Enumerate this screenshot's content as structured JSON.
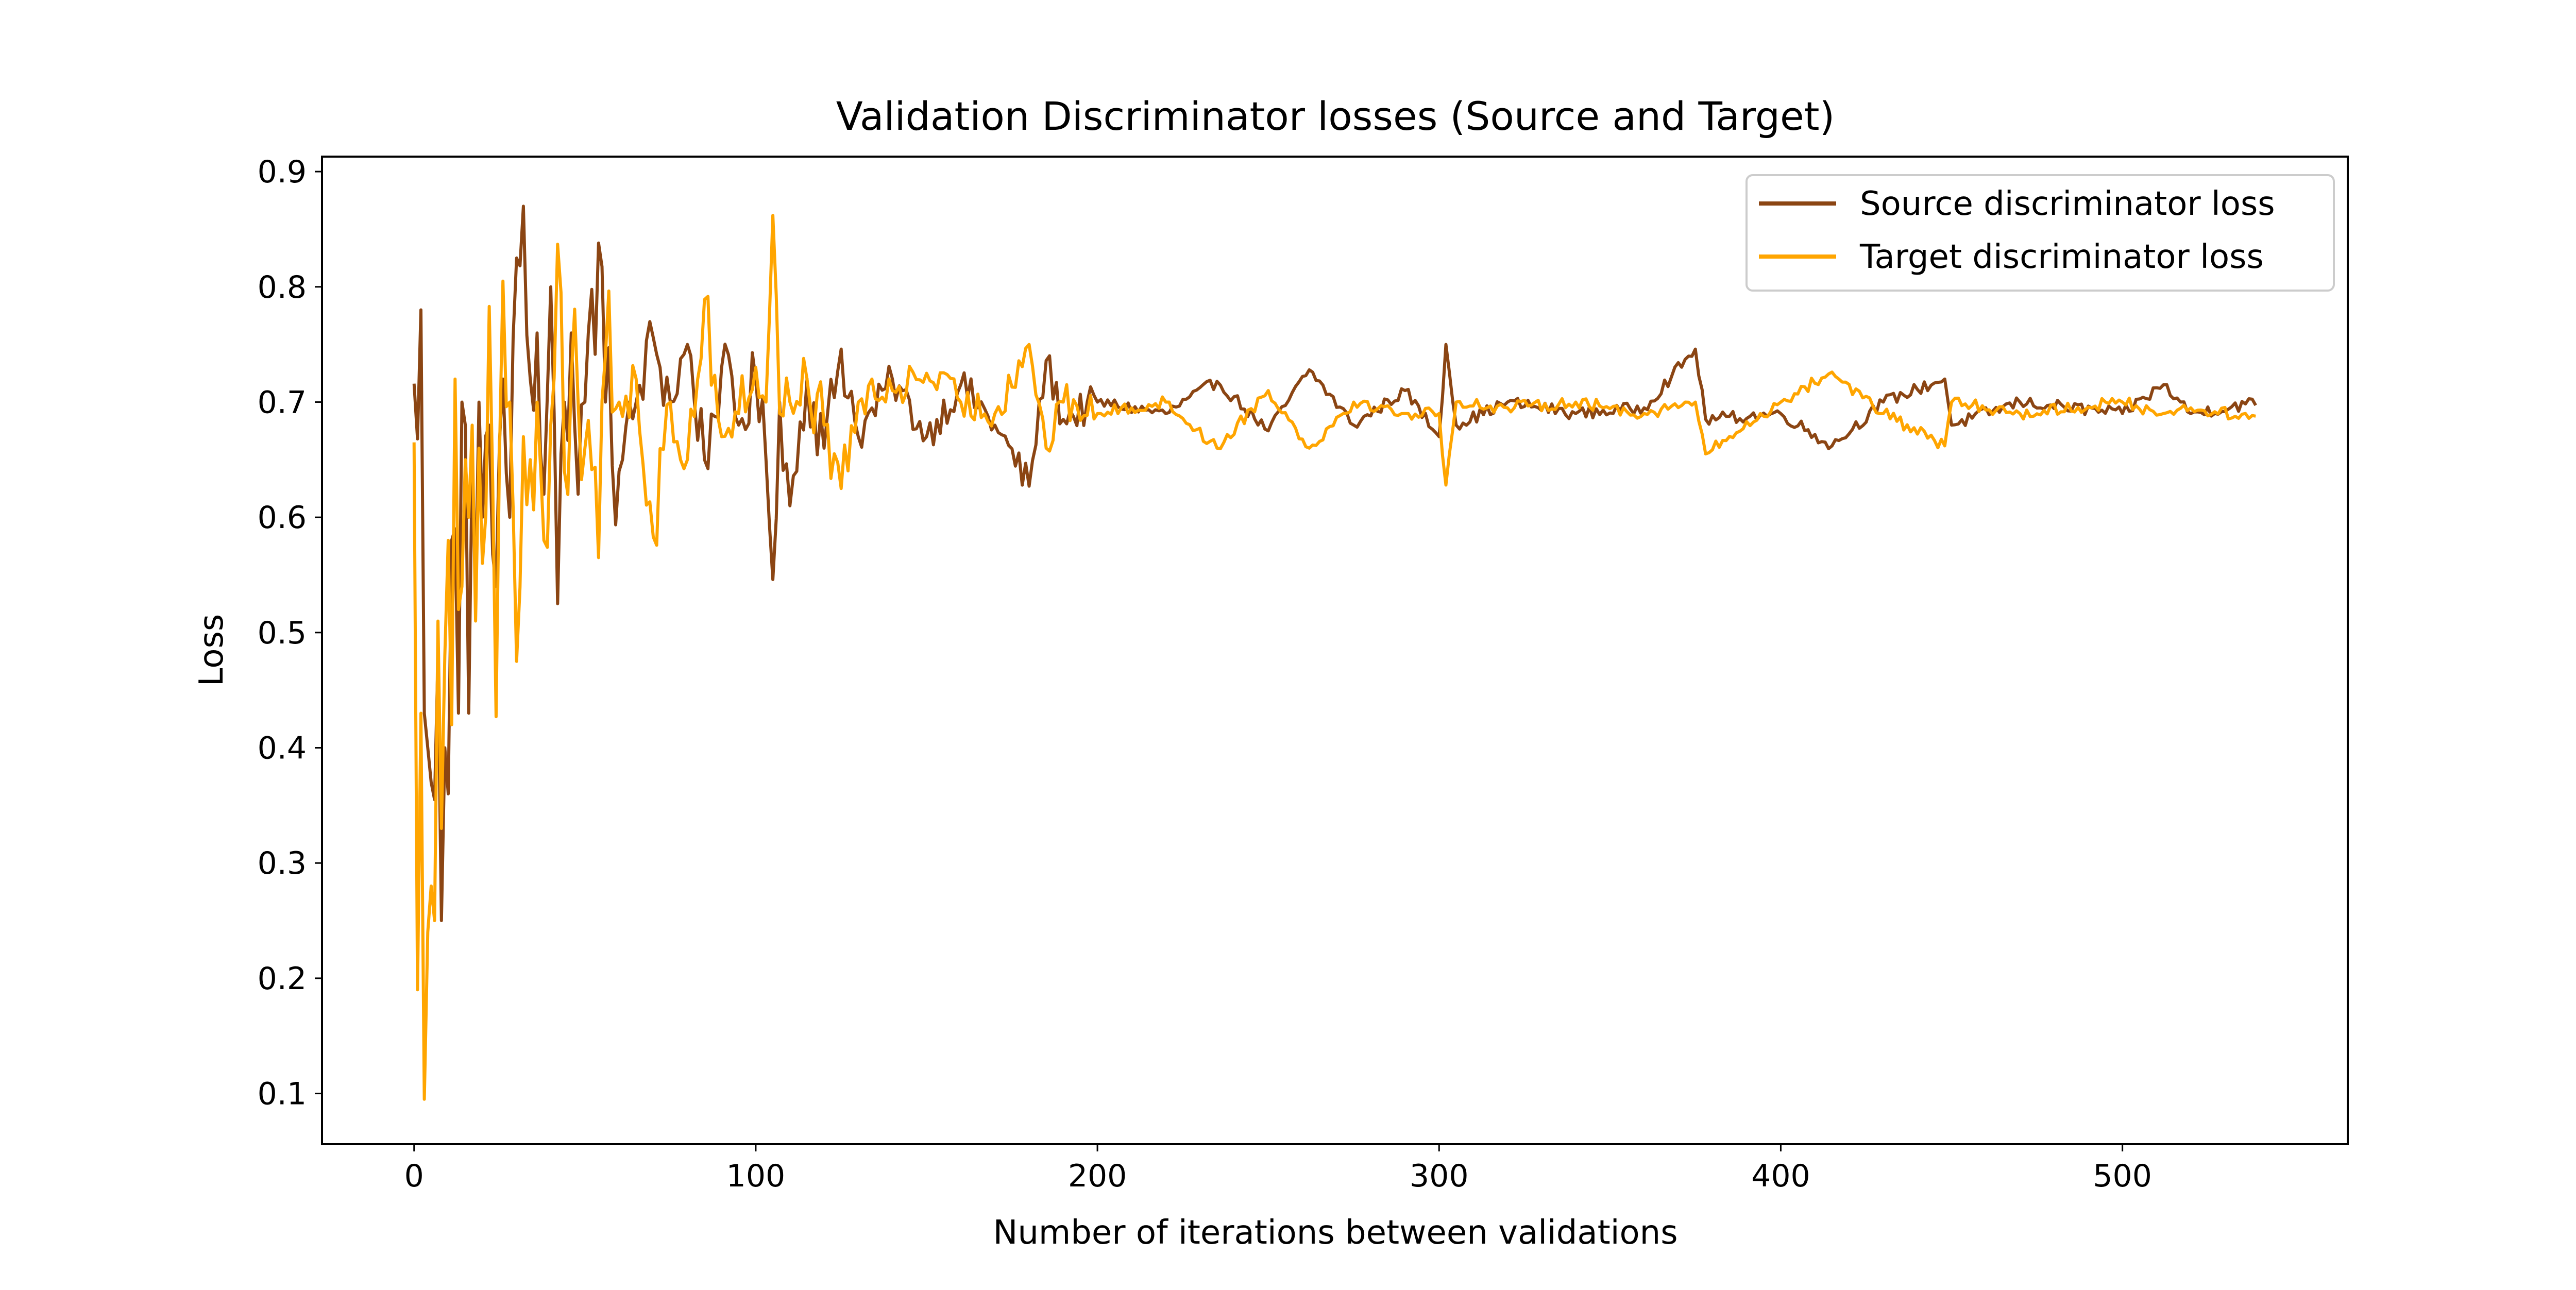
{
  "chart_data": {
    "type": "line",
    "title": "Validation Discriminator losses (Source and Target)",
    "xlabel": "Number of iterations between validations",
    "ylabel": "Loss",
    "xlim": [
      -26.95,
      565.95
    ],
    "ylim": [
      0.056,
      0.913
    ],
    "xticks": [
      0,
      100,
      200,
      300,
      400,
      500
    ],
    "yticks": [
      0.1,
      0.2,
      0.3,
      0.4,
      0.5,
      0.6,
      0.7,
      0.8,
      0.9
    ],
    "xtick_labels": [
      "0",
      "100",
      "200",
      "300",
      "400",
      "500"
    ],
    "ytick_labels": [
      "0.1",
      "0.2",
      "0.3",
      "0.4",
      "0.5",
      "0.6",
      "0.7",
      "0.8",
      "0.9"
    ],
    "grid": false,
    "legend_position": "top-right",
    "n_points": 540,
    "series": [
      {
        "name": "Source discriminator loss",
        "color": "#8B4513",
        "anchors": [
          [
            0,
            0.716
          ],
          [
            1,
            0.668
          ],
          [
            2,
            0.78
          ],
          [
            3,
            0.43
          ],
          [
            4,
            0.4
          ],
          [
            5,
            0.37
          ],
          [
            6,
            0.355
          ],
          [
            7,
            0.48
          ],
          [
            8,
            0.25
          ],
          [
            9,
            0.4
          ],
          [
            10,
            0.36
          ],
          [
            11,
            0.58
          ],
          [
            12,
            0.59
          ],
          [
            13,
            0.43
          ],
          [
            14,
            0.7
          ],
          [
            15,
            0.68
          ],
          [
            16,
            0.43
          ],
          [
            17,
            0.65
          ],
          [
            18,
            0.54
          ],
          [
            19,
            0.7
          ],
          [
            20,
            0.6
          ],
          [
            22,
            0.68
          ],
          [
            24,
            0.54
          ],
          [
            26,
            0.72
          ],
          [
            28,
            0.6
          ],
          [
            30,
            0.825
          ],
          [
            32,
            0.87
          ],
          [
            34,
            0.72
          ],
          [
            36,
            0.76
          ],
          [
            38,
            0.62
          ],
          [
            40,
            0.8
          ],
          [
            42,
            0.525
          ],
          [
            44,
            0.7
          ],
          [
            46,
            0.76
          ],
          [
            48,
            0.62
          ],
          [
            50,
            0.7
          ],
          [
            54,
            0.838
          ],
          [
            56,
            0.7
          ],
          [
            60,
            0.64
          ],
          [
            65,
            0.7
          ],
          [
            70,
            0.756
          ],
          [
            75,
            0.7
          ],
          [
            80,
            0.75
          ],
          [
            85,
            0.65
          ],
          [
            90,
            0.73
          ],
          [
            95,
            0.68
          ],
          [
            100,
            0.72
          ],
          [
            103,
            0.65
          ],
          [
            105,
            0.546
          ],
          [
            107,
            0.7
          ],
          [
            110,
            0.61
          ],
          [
            115,
            0.72
          ],
          [
            120,
            0.66
          ],
          [
            125,
            0.746
          ],
          [
            130,
            0.67
          ],
          [
            140,
            0.72
          ],
          [
            150,
            0.67
          ],
          [
            160,
            0.715
          ],
          [
            170,
            0.68
          ],
          [
            180,
            0.627
          ],
          [
            185,
            0.736
          ],
          [
            190,
            0.685
          ],
          [
            200,
            0.7
          ],
          [
            220,
            0.69
          ],
          [
            235,
            0.718
          ],
          [
            250,
            0.675
          ],
          [
            262,
            0.728
          ],
          [
            275,
            0.68
          ],
          [
            290,
            0.71
          ],
          [
            300,
            0.67
          ],
          [
            302,
            0.75
          ],
          [
            305,
            0.68
          ],
          [
            320,
            0.7
          ],
          [
            340,
            0.69
          ],
          [
            360,
            0.695
          ],
          [
            375,
            0.746
          ],
          [
            378,
            0.685
          ],
          [
            400,
            0.69
          ],
          [
            415,
            0.662
          ],
          [
            430,
            0.7
          ],
          [
            448,
            0.72
          ],
          [
            450,
            0.68
          ],
          [
            470,
            0.7
          ],
          [
            500,
            0.69
          ],
          [
            512,
            0.715
          ],
          [
            520,
            0.69
          ],
          [
            540,
            0.7
          ]
        ]
      },
      {
        "name": "Target discriminator loss",
        "color": "#FFA500",
        "anchors": [
          [
            0,
            0.665
          ],
          [
            1,
            0.19
          ],
          [
            2,
            0.43
          ],
          [
            3,
            0.095
          ],
          [
            4,
            0.24
          ],
          [
            5,
            0.28
          ],
          [
            6,
            0.25
          ],
          [
            7,
            0.51
          ],
          [
            8,
            0.33
          ],
          [
            9,
            0.48
          ],
          [
            10,
            0.58
          ],
          [
            11,
            0.42
          ],
          [
            12,
            0.72
          ],
          [
            13,
            0.52
          ],
          [
            14,
            0.54
          ],
          [
            15,
            0.65
          ],
          [
            16,
            0.6
          ],
          [
            17,
            0.68
          ],
          [
            18,
            0.51
          ],
          [
            19,
            0.66
          ],
          [
            20,
            0.56
          ],
          [
            22,
            0.783
          ],
          [
            24,
            0.427
          ],
          [
            26,
            0.805
          ],
          [
            28,
            0.7
          ],
          [
            30,
            0.475
          ],
          [
            32,
            0.67
          ],
          [
            34,
            0.65
          ],
          [
            36,
            0.7
          ],
          [
            38,
            0.58
          ],
          [
            40,
            0.68
          ],
          [
            42,
            0.837
          ],
          [
            44,
            0.64
          ],
          [
            46,
            0.72
          ],
          [
            48,
            0.7
          ],
          [
            50,
            0.66
          ],
          [
            54,
            0.565
          ],
          [
            56,
            0.74
          ],
          [
            60,
            0.7
          ],
          [
            65,
            0.72
          ],
          [
            70,
            0.583
          ],
          [
            75,
            0.7
          ],
          [
            80,
            0.65
          ],
          [
            85,
            0.789
          ],
          [
            90,
            0.67
          ],
          [
            95,
            0.69
          ],
          [
            100,
            0.73
          ],
          [
            103,
            0.7
          ],
          [
            105,
            0.862
          ],
          [
            107,
            0.69
          ],
          [
            110,
            0.7
          ],
          [
            115,
            0.72
          ],
          [
            120,
            0.68
          ],
          [
            125,
            0.625
          ],
          [
            130,
            0.7
          ],
          [
            140,
            0.71
          ],
          [
            150,
            0.725
          ],
          [
            160,
            0.7
          ],
          [
            170,
            0.69
          ],
          [
            180,
            0.75
          ],
          [
            185,
            0.66
          ],
          [
            190,
            0.7
          ],
          [
            200,
            0.69
          ],
          [
            220,
            0.7
          ],
          [
            235,
            0.66
          ],
          [
            250,
            0.71
          ],
          [
            262,
            0.66
          ],
          [
            275,
            0.7
          ],
          [
            290,
            0.69
          ],
          [
            300,
            0.69
          ],
          [
            302,
            0.628
          ],
          [
            305,
            0.7
          ],
          [
            320,
            0.695
          ],
          [
            340,
            0.7
          ],
          [
            360,
            0.69
          ],
          [
            375,
            0.7
          ],
          [
            378,
            0.655
          ],
          [
            400,
            0.7
          ],
          [
            415,
            0.726
          ],
          [
            430,
            0.69
          ],
          [
            448,
            0.662
          ],
          [
            450,
            0.7
          ],
          [
            470,
            0.69
          ],
          [
            500,
            0.7
          ],
          [
            512,
            0.69
          ],
          [
            520,
            0.695
          ],
          [
            540,
            0.685
          ]
        ]
      }
    ]
  }
}
